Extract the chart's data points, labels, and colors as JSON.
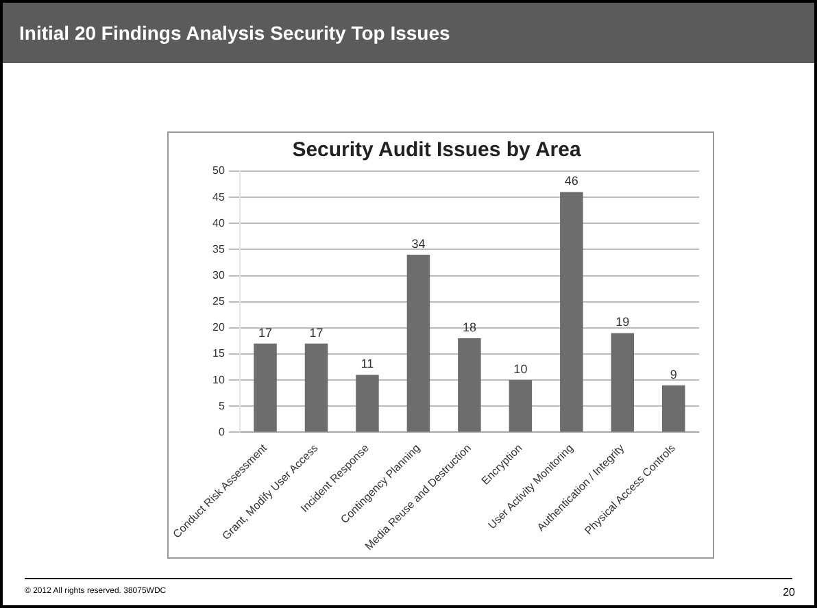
{
  "chart_data": {
    "type": "bar",
    "title": "Security Audit Issues by Area",
    "categories": [
      "Conduct Risk Assessment",
      "Grant, Modify User Access",
      "Incident Response",
      "Contingency Planning",
      "Media Reuse and Destruction",
      "Encryption",
      "User Activity Monitoring",
      "Authentication / Integrity",
      "Physical Access Controls"
    ],
    "values": [
      17,
      17,
      11,
      34,
      18,
      10,
      46,
      19,
      9
    ],
    "color": "#6d6d6d",
    "ylim": [
      0,
      50
    ],
    "yticks": [
      0,
      5,
      10,
      15,
      20,
      25,
      30,
      35,
      40,
      45,
      50
    ],
    "grid": "y",
    "data_labels": true,
    "legend": false,
    "annotations": [
      "Initial 20 Findings Analysis Security Top Issues",
      "© 2012 All rights reserved. 38075WDC",
      "20"
    ]
  }
}
